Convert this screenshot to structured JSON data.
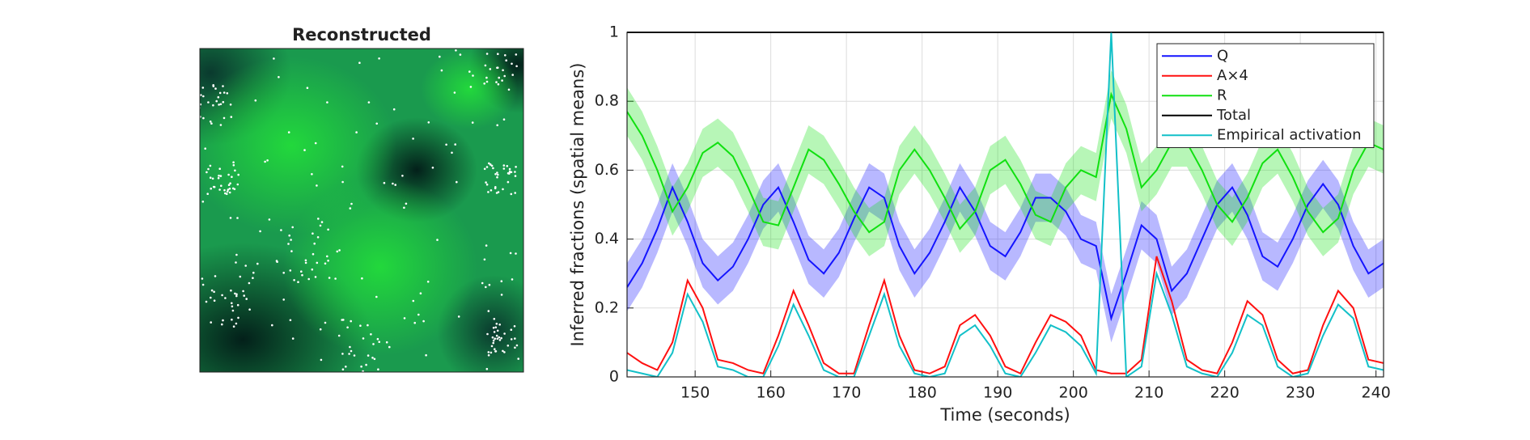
{
  "image_panel": {
    "title": "Reconstructed"
  },
  "chart_data": {
    "type": "line",
    "xlabel": "Time (seconds)",
    "ylabel": "Inferred fractions (spatial means)",
    "xlim": [
      141,
      241
    ],
    "xticks": [
      150,
      160,
      170,
      180,
      190,
      200,
      210,
      220,
      230,
      240
    ],
    "ylim": [
      0,
      1
    ],
    "yticks": [
      0,
      0.2,
      0.4,
      0.6,
      0.8,
      1
    ],
    "grid": true,
    "legend": "northeast",
    "x": [
      141,
      143,
      145,
      147,
      149,
      151,
      153,
      155,
      157,
      159,
      161,
      163,
      165,
      167,
      169,
      171,
      173,
      175,
      177,
      179,
      181,
      183,
      185,
      187,
      189,
      191,
      193,
      195,
      197,
      199,
      201,
      203,
      205,
      207,
      209,
      211,
      213,
      215,
      217,
      219,
      221,
      223,
      225,
      227,
      229,
      231,
      233,
      235,
      237,
      239,
      241
    ],
    "series": [
      {
        "name": "Q",
        "color": "#1414ff",
        "error": 0.07,
        "values": [
          0.26,
          0.33,
          0.43,
          0.55,
          0.45,
          0.33,
          0.28,
          0.32,
          0.4,
          0.5,
          0.55,
          0.45,
          0.34,
          0.3,
          0.36,
          0.46,
          0.55,
          0.52,
          0.38,
          0.3,
          0.36,
          0.45,
          0.55,
          0.48,
          0.38,
          0.35,
          0.42,
          0.52,
          0.52,
          0.48,
          0.4,
          0.38,
          0.17,
          0.3,
          0.44,
          0.4,
          0.25,
          0.3,
          0.4,
          0.5,
          0.55,
          0.47,
          0.35,
          0.32,
          0.4,
          0.5,
          0.56,
          0.5,
          0.38,
          0.3,
          0.33
        ]
      },
      {
        "name": "A×4",
        "color": "#ff1010",
        "values": [
          0.07,
          0.04,
          0.02,
          0.1,
          0.28,
          0.2,
          0.05,
          0.04,
          0.02,
          0.01,
          0.12,
          0.25,
          0.15,
          0.04,
          0.01,
          0.01,
          0.15,
          0.28,
          0.12,
          0.02,
          0.01,
          0.03,
          0.15,
          0.18,
          0.12,
          0.03,
          0.01,
          0.1,
          0.18,
          0.16,
          0.12,
          0.02,
          0.01,
          0.01,
          0.05,
          0.35,
          0.22,
          0.05,
          0.02,
          0.01,
          0.1,
          0.22,
          0.18,
          0.05,
          0.01,
          0.02,
          0.15,
          0.25,
          0.2,
          0.05,
          0.04
        ]
      },
      {
        "name": "R",
        "color": "#10e010",
        "error": 0.07,
        "values": [
          0.77,
          0.7,
          0.6,
          0.48,
          0.55,
          0.65,
          0.68,
          0.64,
          0.55,
          0.45,
          0.44,
          0.55,
          0.66,
          0.63,
          0.56,
          0.48,
          0.42,
          0.45,
          0.6,
          0.66,
          0.6,
          0.52,
          0.43,
          0.48,
          0.6,
          0.63,
          0.56,
          0.47,
          0.45,
          0.55,
          0.6,
          0.58,
          0.82,
          0.72,
          0.55,
          0.6,
          0.68,
          0.68,
          0.6,
          0.5,
          0.45,
          0.52,
          0.62,
          0.66,
          0.58,
          0.48,
          0.42,
          0.46,
          0.6,
          0.68,
          0.66
        ]
      },
      {
        "name": "Total",
        "color": "#000000",
        "values": [
          1,
          1,
          1,
          1,
          1,
          1,
          1,
          1,
          1,
          1,
          1,
          1,
          1,
          1,
          1,
          1,
          1,
          1,
          1,
          1,
          1,
          1,
          1,
          1,
          1,
          1,
          1,
          1,
          1,
          1,
          1,
          1,
          1,
          1,
          1,
          1,
          1,
          1,
          1,
          1,
          1,
          1,
          1,
          1,
          1,
          1,
          1,
          1,
          1,
          1,
          1
        ]
      },
      {
        "name": "Empirical activation",
        "color": "#12c0c8",
        "values": [
          0.02,
          0.01,
          0,
          0.07,
          0.24,
          0.16,
          0.03,
          0.02,
          0,
          0,
          0.09,
          0.21,
          0.12,
          0.02,
          0,
          0,
          0.12,
          0.24,
          0.09,
          0.01,
          0,
          0.01,
          0.12,
          0.15,
          0.09,
          0.01,
          0,
          0.07,
          0.15,
          0.13,
          0.09,
          0.01,
          1.0,
          0,
          0.03,
          0.3,
          0.18,
          0.03,
          0.01,
          0,
          0.07,
          0.18,
          0.15,
          0.03,
          0,
          0.01,
          0.12,
          0.21,
          0.17,
          0.03,
          0.02
        ]
      }
    ]
  }
}
